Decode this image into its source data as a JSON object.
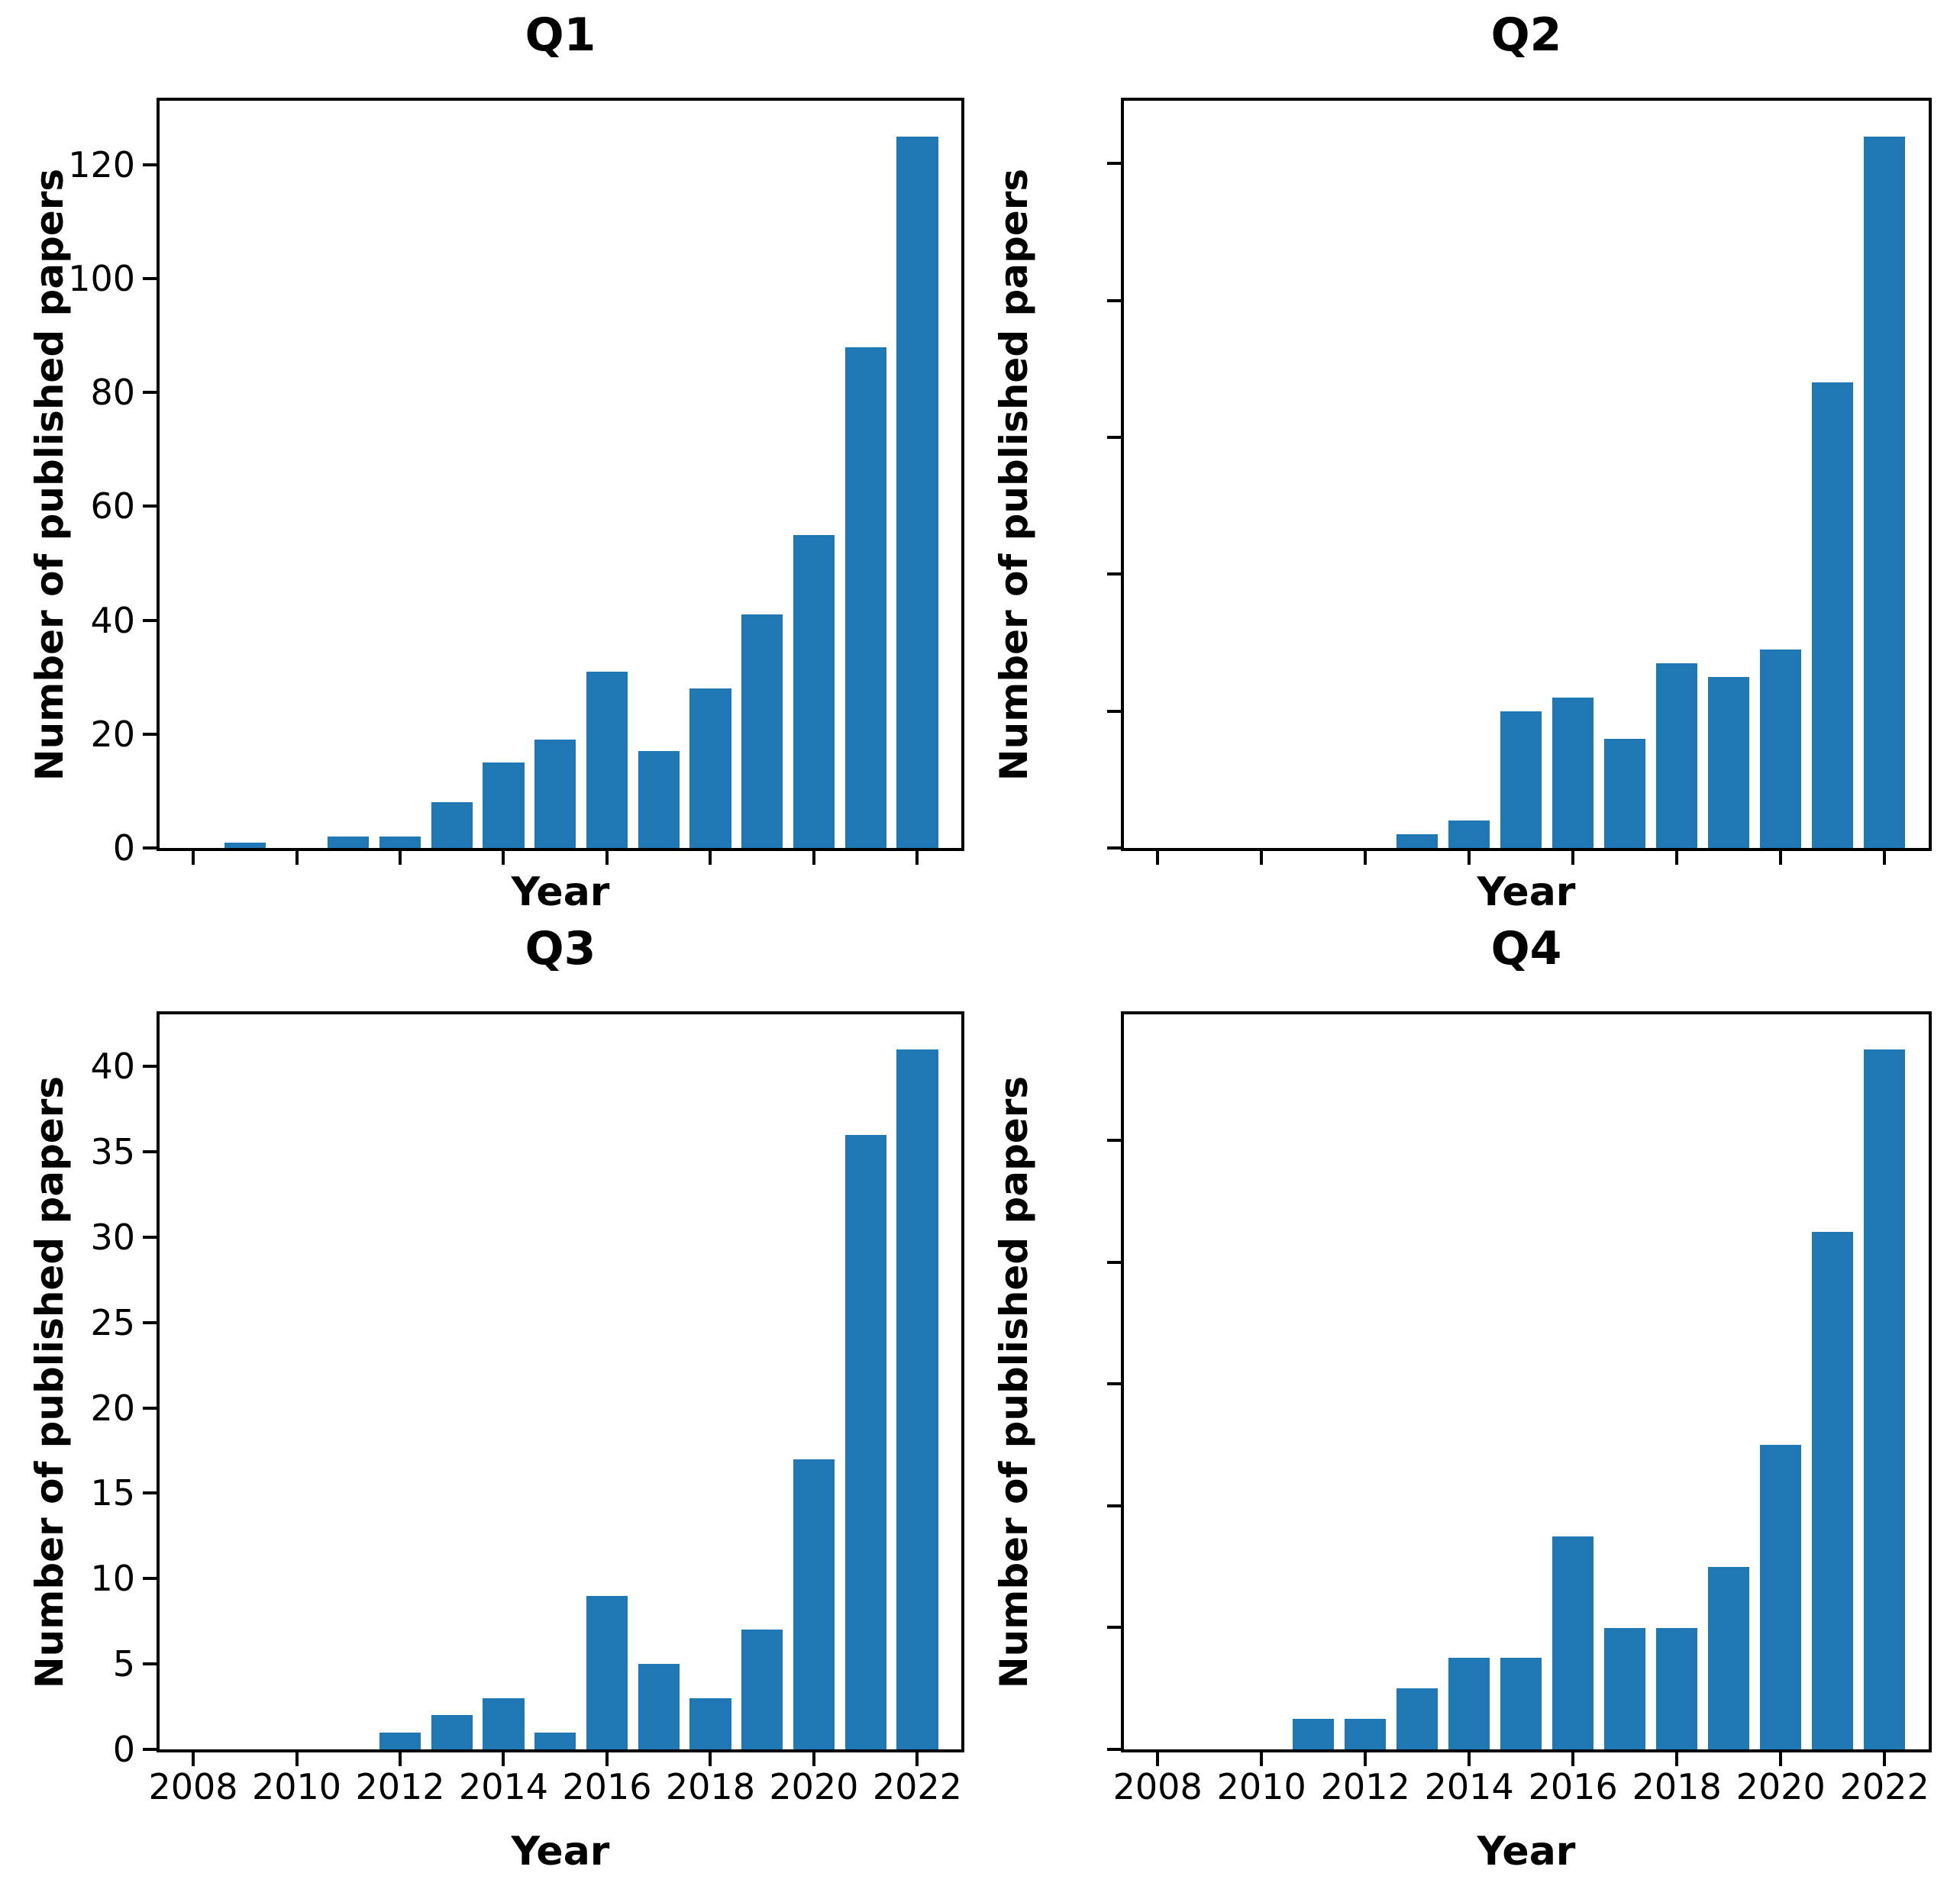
{
  "figure": {
    "background": "#ffffff",
    "bar_color": "#1f77b4",
    "axis_color": "#000000"
  },
  "chart_data": [
    {
      "type": "bar",
      "title": "Q1",
      "xlabel": "Year",
      "ylabel": "Number of published papers",
      "categories": [
        2008,
        2009,
        2010,
        2011,
        2012,
        2013,
        2014,
        2015,
        2016,
        2017,
        2018,
        2019,
        2020,
        2021,
        2022
      ],
      "values": [
        0,
        1,
        0,
        2,
        2,
        8,
        15,
        19,
        31,
        17,
        28,
        41,
        55,
        88,
        125
      ],
      "bar_color": "#1f77b4",
      "grid": false,
      "xlim": [
        2007.35,
        2022.85
      ],
      "ylim": [
        0,
        131.25
      ],
      "yticks": {
        "values": [
          0,
          20,
          40,
          60,
          80,
          100,
          120
        ],
        "labeled": true
      },
      "xticks": {
        "values": [
          2008,
          2010,
          2012,
          2014,
          2016,
          2018,
          2020,
          2022
        ],
        "labeled": false
      }
    },
    {
      "type": "bar",
      "title": "Q2",
      "xlabel": "Year",
      "ylabel": "Number of published papers",
      "categories": [
        2008,
        2009,
        2010,
        2011,
        2012,
        2013,
        2014,
        2015,
        2016,
        2017,
        2018,
        2019,
        2020,
        2021,
        2022
      ],
      "values": [
        0,
        0,
        0,
        0,
        0,
        2,
        4,
        20,
        22,
        16,
        27,
        25,
        29,
        68,
        104
      ],
      "bar_color": "#1f77b4",
      "grid": false,
      "xlim": [
        2007.35,
        2022.85
      ],
      "ylim": [
        0,
        109.2
      ],
      "yticks": {
        "values": [
          0,
          20,
          40,
          60,
          80,
          100
        ],
        "labeled": false
      },
      "xticks": {
        "values": [
          2008,
          2010,
          2012,
          2014,
          2016,
          2018,
          2020,
          2022
        ],
        "labeled": false
      }
    },
    {
      "type": "bar",
      "title": "Q3",
      "xlabel": "Year",
      "ylabel": "Number of published papers",
      "categories": [
        2008,
        2009,
        2010,
        2011,
        2012,
        2013,
        2014,
        2015,
        2016,
        2017,
        2018,
        2019,
        2020,
        2021,
        2022
      ],
      "values": [
        0,
        0,
        0,
        0,
        1,
        2,
        3,
        1,
        9,
        5,
        3,
        7,
        17,
        36,
        41
      ],
      "bar_color": "#1f77b4",
      "grid": false,
      "xlim": [
        2007.35,
        2022.85
      ],
      "ylim": [
        0,
        43.05
      ],
      "yticks": {
        "values": [
          0,
          5,
          10,
          15,
          20,
          25,
          30,
          35,
          40
        ],
        "labeled": true
      },
      "xticks": {
        "values": [
          2008,
          2010,
          2012,
          2014,
          2016,
          2018,
          2020,
          2022
        ],
        "labeled": true
      }
    },
    {
      "type": "bar",
      "title": "Q4",
      "xlabel": "Year",
      "ylabel": "Number of published papers",
      "categories": [
        2008,
        2009,
        2010,
        2011,
        2012,
        2013,
        2014,
        2015,
        2016,
        2017,
        2018,
        2019,
        2020,
        2021,
        2022
      ],
      "values": [
        0,
        0,
        0,
        1,
        1,
        2,
        3,
        3,
        7,
        4,
        4,
        6,
        10,
        17,
        23
      ],
      "bar_color": "#1f77b4",
      "grid": false,
      "xlim": [
        2007.35,
        2022.85
      ],
      "ylim": [
        0,
        24.15
      ],
      "yticks": {
        "values": [
          0,
          4,
          8,
          12,
          16,
          20
        ],
        "labeled": false
      },
      "xticks": {
        "values": [
          2008,
          2010,
          2012,
          2014,
          2016,
          2018,
          2020,
          2022
        ],
        "labeled": true
      }
    }
  ]
}
